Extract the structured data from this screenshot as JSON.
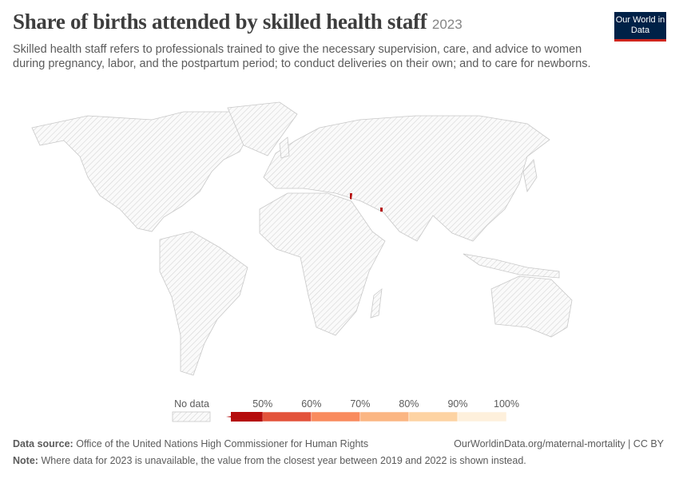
{
  "header": {
    "title": "Share of births attended by skilled health staff",
    "year": "2023",
    "subtitle": "Skilled health staff refers to professionals trained to give the necessary supervision, care, and advice to women during pregnancy, labor, and the postpartum period; to conduct deliveries on their own; and to care for newborns.",
    "logo": "Our World in Data"
  },
  "legend": {
    "no_data": "No data",
    "ticks": [
      "50%",
      "60%",
      "70%",
      "80%",
      "90%",
      "100%"
    ],
    "colors": [
      "#b50c0c",
      "#e3533b",
      "#f98b5e",
      "#fbb683",
      "#fdd3a3",
      "#fef0dc"
    ]
  },
  "footer": {
    "source_label": "Data source:",
    "source": "Office of the United Nations High Commissioner for Human Rights",
    "url": "OurWorldinData.org/maternal-mortality | CC BY",
    "note_label": "Note:",
    "note": "Where data for 2023 is unavailable, the value from the closest year between 2019 and 2022 is shown instead."
  }
}
